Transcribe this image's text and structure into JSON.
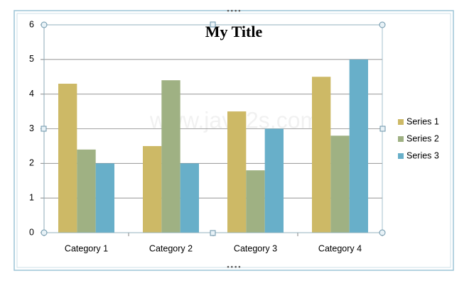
{
  "watermark": "www.java2s.com",
  "chart_data": {
    "type": "bar",
    "title": "My Title",
    "categories": [
      "Category 1",
      "Category 2",
      "Category 3",
      "Category 4"
    ],
    "series": [
      {
        "name": "Series 1",
        "color": "#cdb966",
        "values": [
          4.3,
          2.5,
          3.5,
          4.5
        ]
      },
      {
        "name": "Series 2",
        "color": "#9fb183",
        "values": [
          2.4,
          4.4,
          1.8,
          2.8
        ]
      },
      {
        "name": "Series 3",
        "color": "#68afc9",
        "values": [
          2,
          2,
          3,
          5
        ]
      }
    ],
    "ylim": [
      0,
      6
    ],
    "yticks": [
      0,
      1,
      2,
      3,
      4,
      5,
      6
    ],
    "grid": true,
    "legend": "right"
  }
}
